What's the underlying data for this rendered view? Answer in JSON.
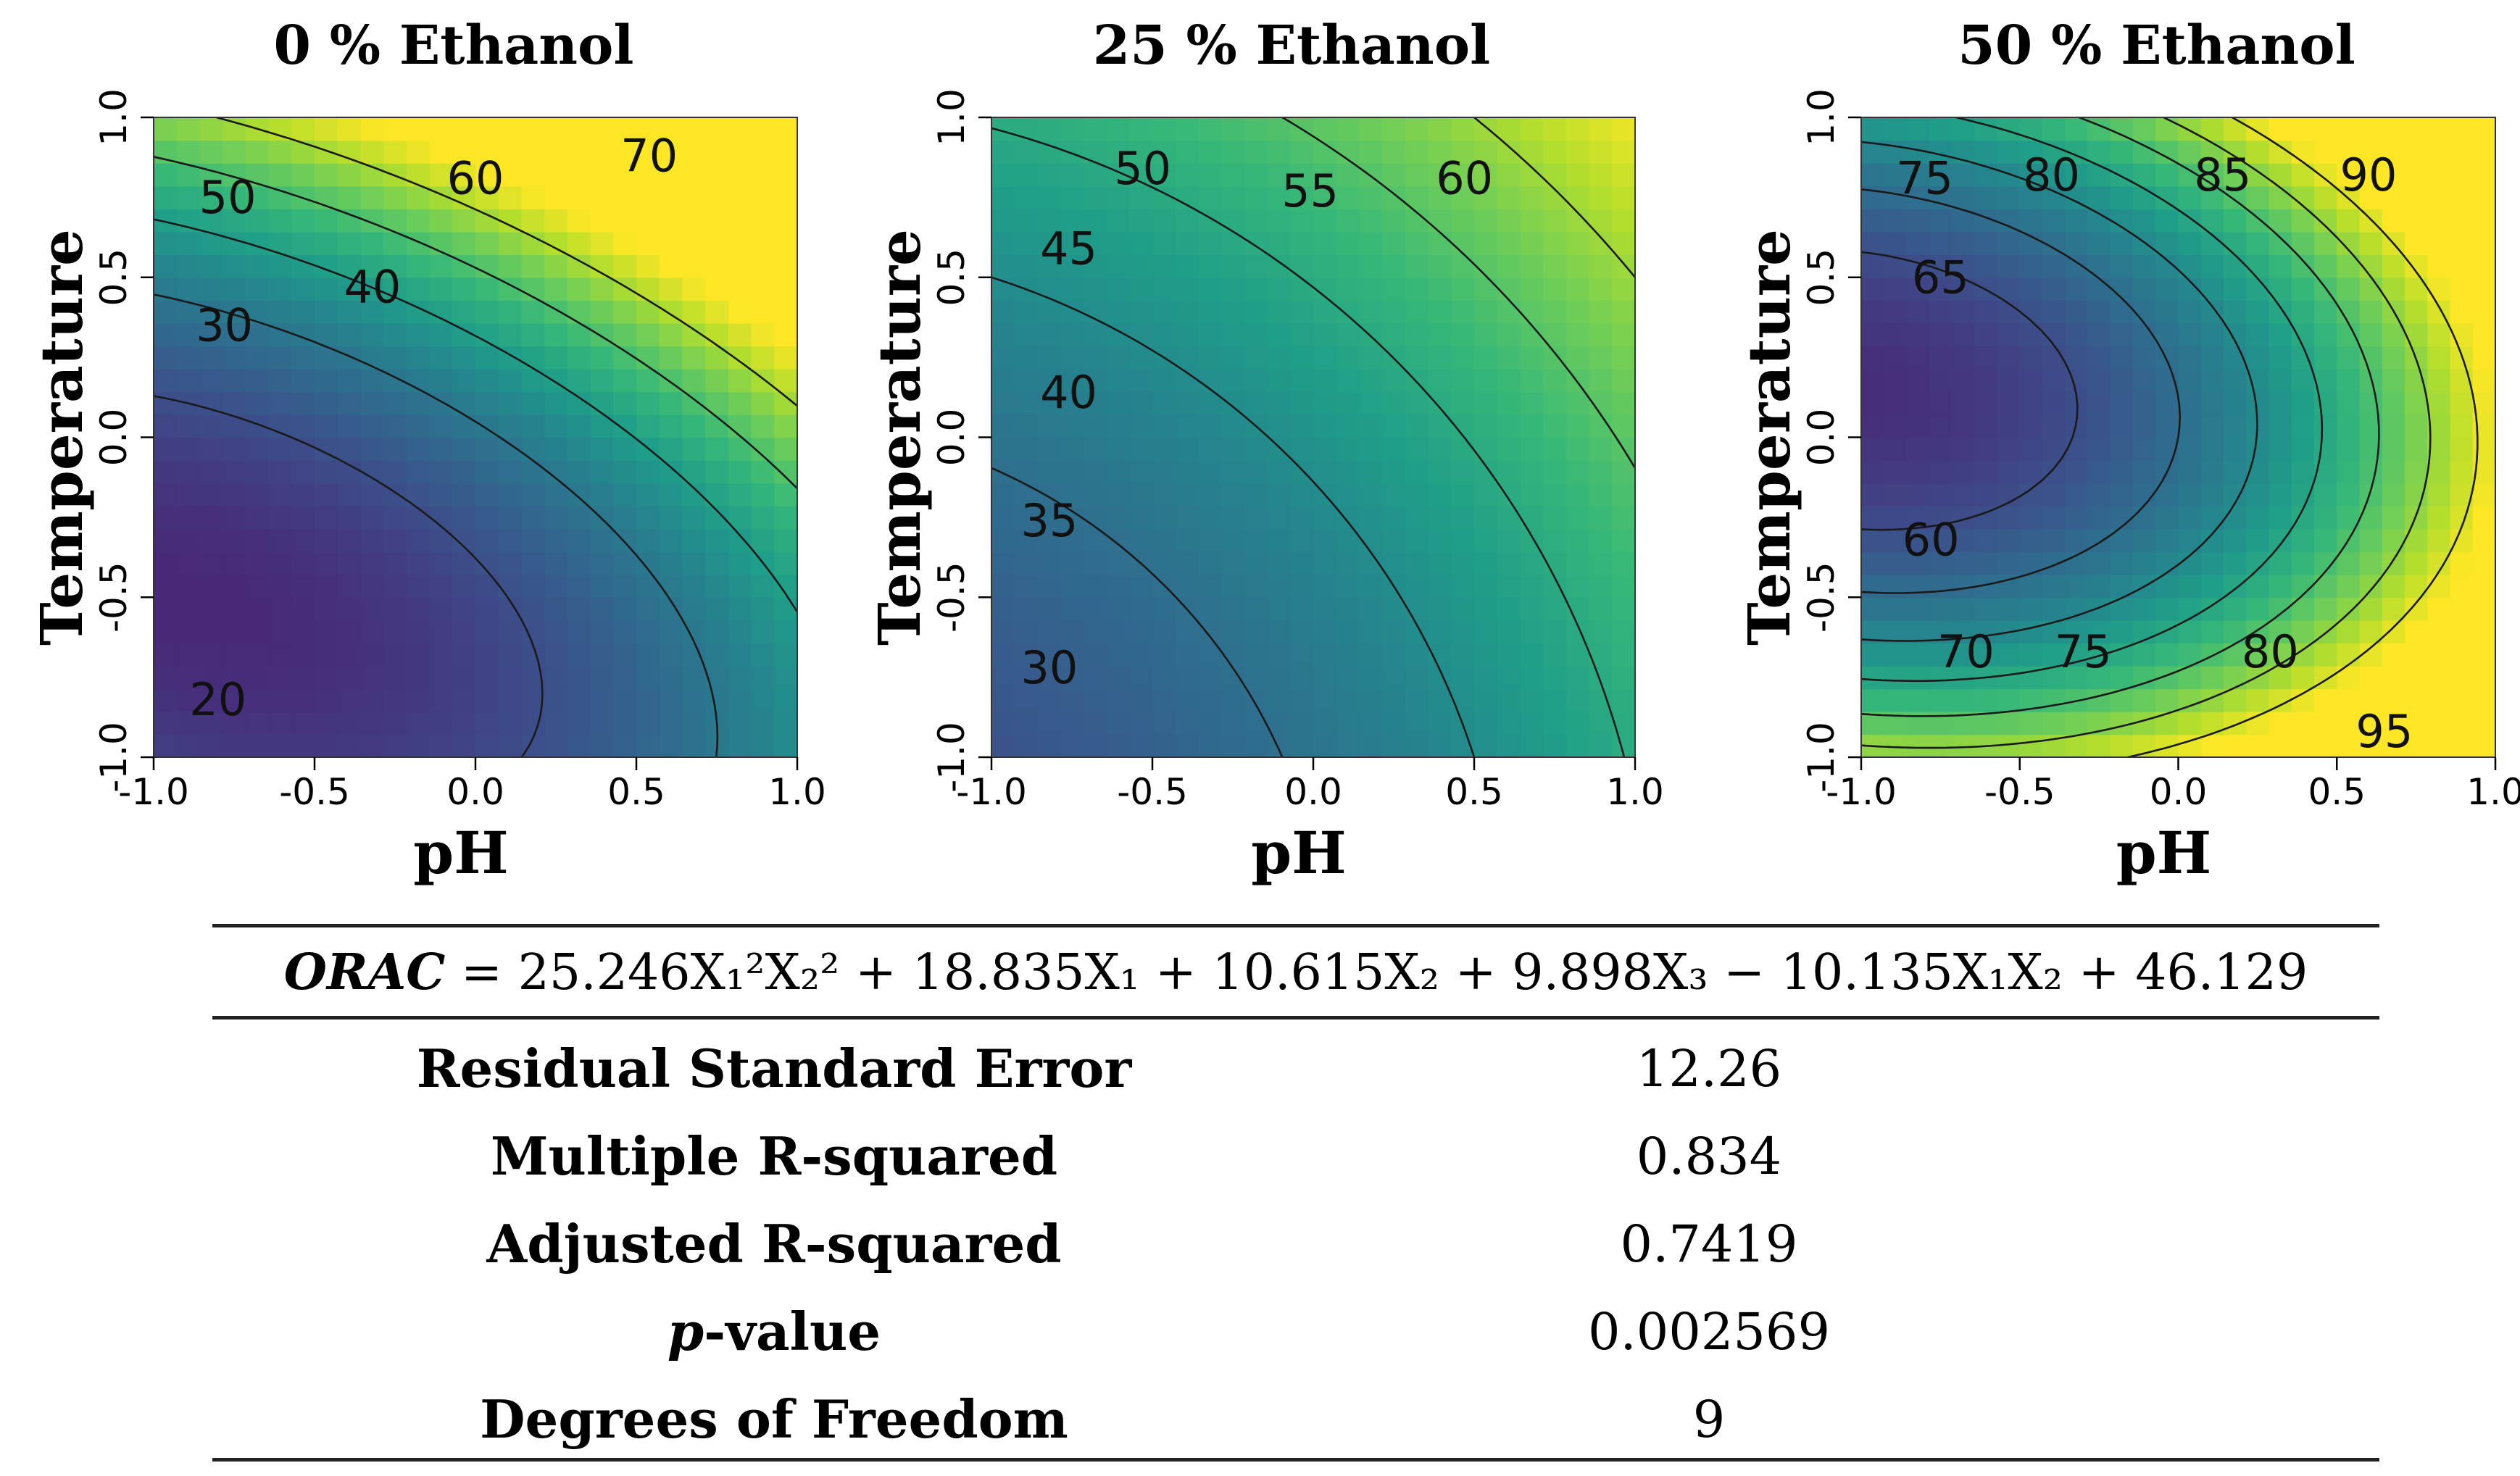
{
  "chart_data": [
    {
      "type": "heatmap",
      "title": "0 % Ethanol",
      "xlabel": "pH",
      "ylabel": "Temperature",
      "xlim": [
        -1.0,
        1.0
      ],
      "ylim": [
        -1.0,
        1.0
      ],
      "x_ticks": [
        "-1.0",
        "-0.5",
        "0.0",
        "0.5",
        "1.0"
      ],
      "y_ticks": [
        "-1.0",
        "-0.5",
        "0.0",
        "0.5",
        "1.0"
      ],
      "contour_levels": [
        20,
        30,
        40,
        50,
        60,
        70
      ],
      "contour_labels": [
        {
          "text": "20",
          "x": -0.8,
          "y": -0.83
        },
        {
          "text": "30",
          "x": -0.78,
          "y": 0.34
        },
        {
          "text": "40",
          "x": -0.32,
          "y": 0.46
        },
        {
          "text": "50",
          "x": -0.77,
          "y": 0.74
        },
        {
          "text": "60",
          "x": 0.0,
          "y": 0.8
        },
        {
          "text": "70",
          "x": 0.54,
          "y": 0.87
        }
      ],
      "colorscale": "viridis",
      "value_range": [
        15,
        78
      ]
    },
    {
      "type": "heatmap",
      "title": "25 % Ethanol",
      "xlabel": "pH",
      "ylabel": "Temperature",
      "xlim": [
        -1.0,
        1.0
      ],
      "ylim": [
        -1.0,
        1.0
      ],
      "x_ticks": [
        "-1.0",
        "-0.5",
        "0.0",
        "0.5",
        "1.0"
      ],
      "y_ticks": [
        "-1.0",
        "-0.5",
        "0.0",
        "0.5",
        "1.0"
      ],
      "contour_levels": [
        30,
        35,
        40,
        45,
        50,
        55,
        60
      ],
      "contour_labels": [
        {
          "text": "30",
          "x": -0.82,
          "y": -0.73
        },
        {
          "text": "35",
          "x": -0.82,
          "y": -0.27
        },
        {
          "text": "40",
          "x": -0.76,
          "y": 0.13
        },
        {
          "text": "45",
          "x": -0.76,
          "y": 0.58
        },
        {
          "text": "50",
          "x": -0.53,
          "y": 0.83
        },
        {
          "text": "55",
          "x": -0.01,
          "y": 0.76
        },
        {
          "text": "60",
          "x": 0.47,
          "y": 0.8
        }
      ],
      "colorscale": "viridis",
      "value_range": [
        25,
        66
      ]
    },
    {
      "type": "heatmap",
      "title": "50 % Ethanol",
      "xlabel": "pH",
      "ylabel": "Temperature",
      "xlim": [
        -1.0,
        1.0
      ],
      "ylim": [
        -1.0,
        1.0
      ],
      "x_ticks": [
        "-1.0",
        "-0.5",
        "0.0",
        "0.5",
        "1.0"
      ],
      "y_ticks": [
        "-1.0",
        "-0.5",
        "0.0",
        "0.5",
        "1.0"
      ],
      "contour_levels": [
        60,
        65,
        70,
        75,
        80,
        85,
        90,
        95
      ],
      "contour_labels": [
        {
          "text": "60",
          "x": -0.78,
          "y": -0.33
        },
        {
          "text": "65",
          "x": -0.75,
          "y": 0.49
        },
        {
          "text": "70",
          "x": -0.67,
          "y": -0.68
        },
        {
          "text": "75",
          "x": -0.8,
          "y": 0.8
        },
        {
          "text": "75",
          "x": -0.3,
          "y": -0.68
        },
        {
          "text": "80",
          "x": -0.4,
          "y": 0.81
        },
        {
          "text": "80",
          "x": 0.29,
          "y": -0.68
        },
        {
          "text": "85",
          "x": 0.14,
          "y": 0.81
        },
        {
          "text": "90",
          "x": 0.6,
          "y": 0.81
        },
        {
          "text": "95",
          "x": 0.65,
          "y": -0.93
        }
      ],
      "colorscale": "viridis",
      "value_range": [
        55,
        97
      ]
    }
  ],
  "equation": {
    "lhs": "ORAC",
    "rhs": "= 25.246X₁²X₂² + 18.835X₁ + 10.615X₂ + 9.898X₃ − 10.135X₁X₂ + 46.129"
  },
  "stats": [
    {
      "name": "Residual Standard Error",
      "value": "12.26"
    },
    {
      "name": "Multiple R-squared",
      "value": "0.834"
    },
    {
      "name": "Adjusted R-squared",
      "value": "0.7419"
    },
    {
      "name": "p-value",
      "value": "0.002569"
    },
    {
      "name": "Degrees of Freedom",
      "value": "9"
    }
  ]
}
